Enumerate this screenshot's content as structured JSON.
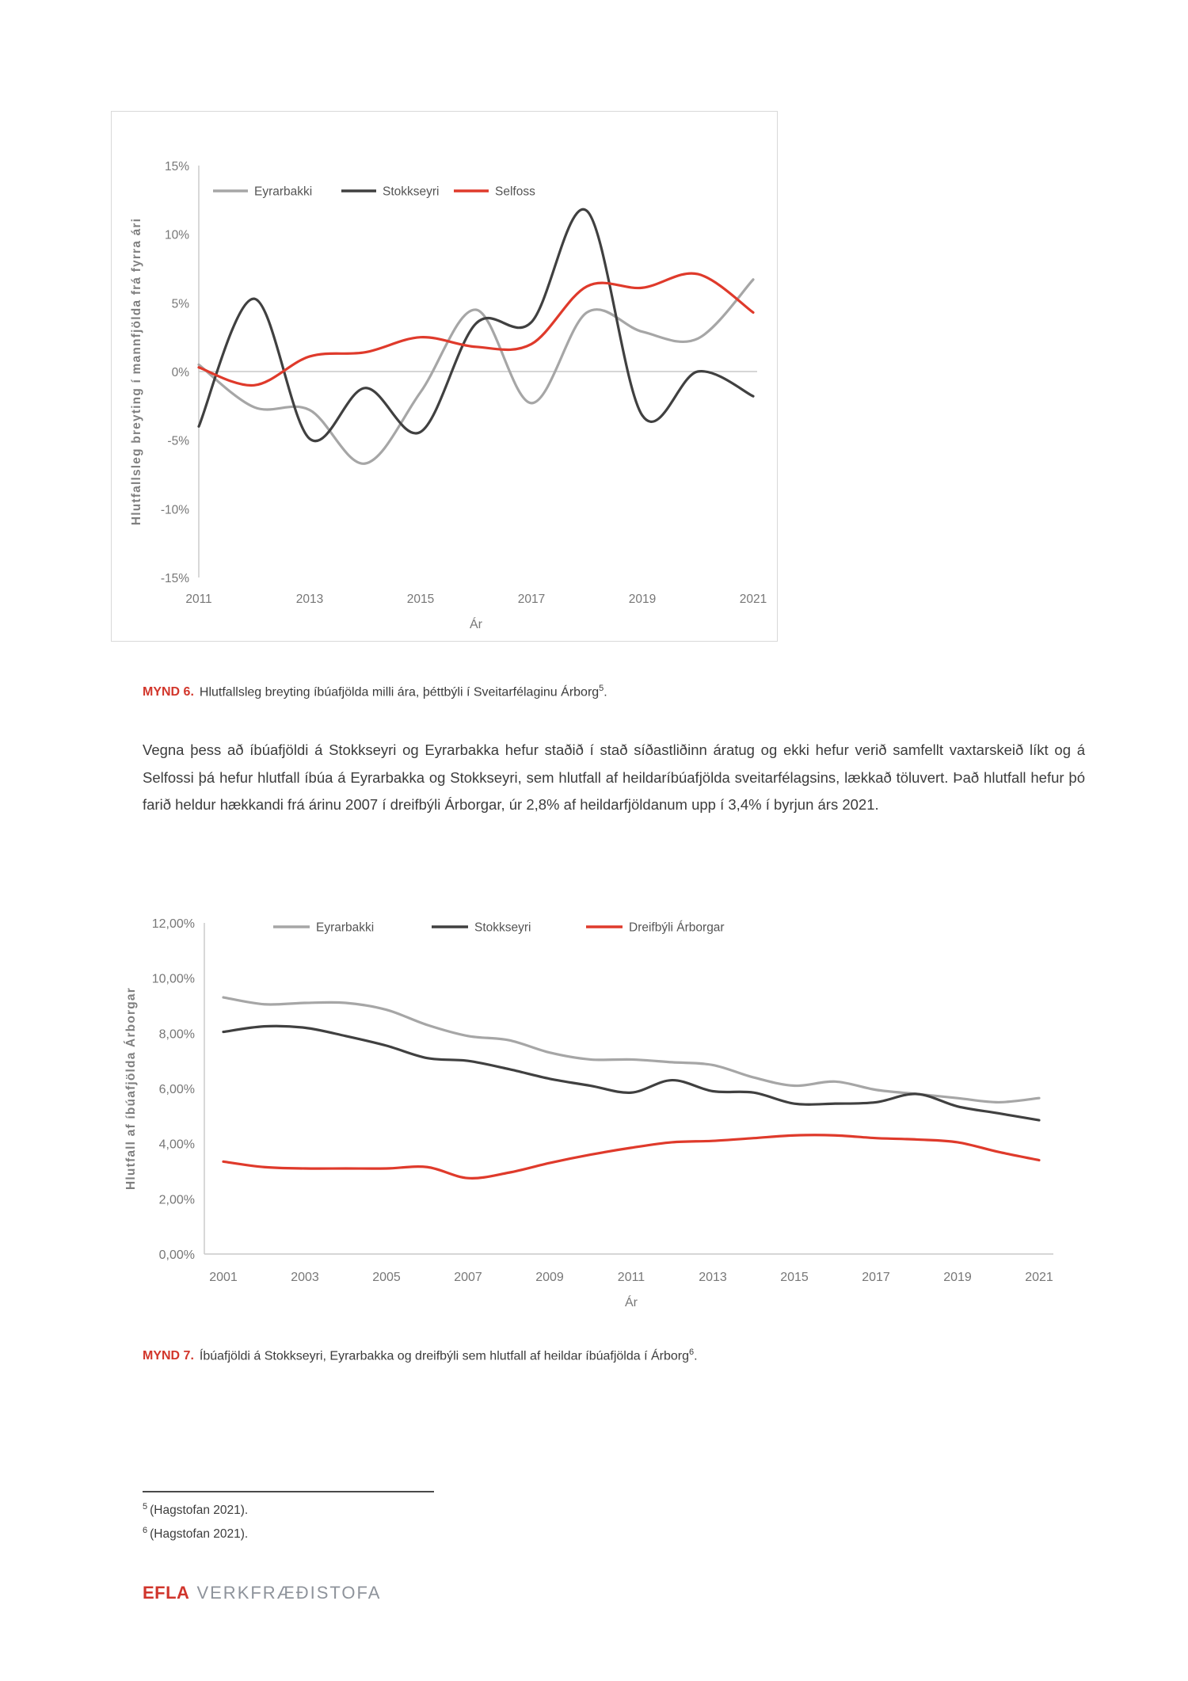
{
  "page": {
    "footer": {
      "logo_primary": "EFLA",
      "logo_secondary": "VERKFRÆÐISTOFA"
    },
    "colors": {
      "accent_red": "#D2362B",
      "series_gray": "#A6A6A6",
      "series_dark": "#404040",
      "series_red": "#DF3A2B",
      "axis_gray": "#C8C8C8",
      "tick_text": "#777777",
      "legend_text": "#555555"
    }
  },
  "figure6": {
    "caption_label": "MYND 6.",
    "caption_text": "Hlutfallsleg breyting íbúafjölda milli ára, þéttbýli í Sveitarfélaginu Árborg",
    "footnote_ref": "5",
    "caption_period": "."
  },
  "paragraph": "Vegna þess að íbúafjöldi á Stokkseyri og Eyrarbakka hefur staðið í stað síðastliðinn áratug og ekki hefur verið samfellt vaxtarskeið líkt og á Selfossi þá hefur hlutfall íbúa á Eyrarbakka og Stokkseyri, sem hlutfall af heildaríbúafjölda sveitarfélagsins, lækkað töluvert. Það hlutfall hefur þó farið heldur hækkandi frá árinu 2007 í dreifbýli Árborgar, úr 2,8% af heildarfjöldanum upp í 3,4% í byrjun árs 2021.",
  "figure7": {
    "caption_label": "MYND 7.",
    "caption_text": "Íbúafjöldi á Stokkseyri, Eyrarbakka og dreifbýli sem hlutfall af heildar íbúafjölda í Árborg",
    "footnote_ref": "6",
    "caption_period": "."
  },
  "footnotes": [
    {
      "ref": "5",
      "text": "(Hagstofan 2021)."
    },
    {
      "ref": "6",
      "text": "(Hagstofan 2021)."
    }
  ],
  "chart_data": [
    {
      "id": "chart-population-change",
      "type": "line",
      "title": "",
      "xlabel": "Ár",
      "ylabel": "Hlutfallsleg breyting í mannfjölda frá fyrra ári",
      "x": [
        2011,
        2012,
        2013,
        2014,
        2015,
        2016,
        2017,
        2018,
        2019,
        2020,
        2021
      ],
      "x_tick_labels": [
        "2011",
        "2013",
        "2015",
        "2017",
        "2019",
        "2021"
      ],
      "ylim": [
        -15,
        15
      ],
      "y_tick_step": 5,
      "y_tick_format": "percent_int",
      "grid": "zero-line-only",
      "legend_position": "top",
      "series": [
        {
          "name": "Eyrarbakki",
          "color": "#A6A6A6",
          "values": [
            0.5,
            -2.6,
            -2.8,
            -6.7,
            -1.5,
            4.5,
            -2.3,
            4.3,
            2.9,
            2.4,
            6.7
          ]
        },
        {
          "name": "Stokkseyri",
          "color": "#404040",
          "values": [
            -4.0,
            5.3,
            -4.9,
            -1.2,
            -4.4,
            3.5,
            3.6,
            11.7,
            -3.2,
            0.0,
            -1.8
          ]
        },
        {
          "name": "Selfoss",
          "color": "#DF3A2B",
          "values": [
            0.3,
            -1.0,
            1.1,
            1.4,
            2.5,
            1.8,
            2.0,
            6.2,
            6.1,
            7.1,
            4.3
          ]
        }
      ]
    },
    {
      "id": "chart-population-share",
      "type": "line",
      "title": "",
      "xlabel": "Ár",
      "ylabel": "Hlutfall af íbúafjölda Árborgar",
      "x": [
        2001,
        2002,
        2003,
        2004,
        2005,
        2006,
        2007,
        2008,
        2009,
        2010,
        2011,
        2012,
        2013,
        2014,
        2015,
        2016,
        2017,
        2018,
        2019,
        2020,
        2021
      ],
      "x_tick_labels": [
        "2001",
        "2003",
        "2005",
        "2007",
        "2009",
        "2011",
        "2013",
        "2015",
        "2017",
        "2019",
        "2021"
      ],
      "ylim": [
        0,
        12
      ],
      "y_tick_step": 2,
      "y_tick_format": "percent_comma_2dp",
      "grid": "baseline-only",
      "legend_position": "top",
      "series": [
        {
          "name": "Eyrarbakki",
          "color": "#A6A6A6",
          "values": [
            9.3,
            9.05,
            9.1,
            9.1,
            8.85,
            8.3,
            7.9,
            7.75,
            7.3,
            7.05,
            7.05,
            6.95,
            6.85,
            6.4,
            6.1,
            6.25,
            5.95,
            5.8,
            5.65,
            5.5,
            5.65
          ]
        },
        {
          "name": "Stokkseyri",
          "color": "#404040",
          "values": [
            8.05,
            8.25,
            8.2,
            7.9,
            7.55,
            7.1,
            7.0,
            6.7,
            6.35,
            6.1,
            5.85,
            6.3,
            5.9,
            5.85,
            5.45,
            5.45,
            5.5,
            5.8,
            5.35,
            5.1,
            4.85
          ]
        },
        {
          "name": "Dreifbýli Árborgar",
          "color": "#DF3A2B",
          "values": [
            3.35,
            3.15,
            3.1,
            3.1,
            3.1,
            3.15,
            2.75,
            2.95,
            3.3,
            3.6,
            3.85,
            4.05,
            4.1,
            4.2,
            4.3,
            4.3,
            4.2,
            4.15,
            4.05,
            3.7,
            3.4
          ]
        }
      ]
    }
  ]
}
